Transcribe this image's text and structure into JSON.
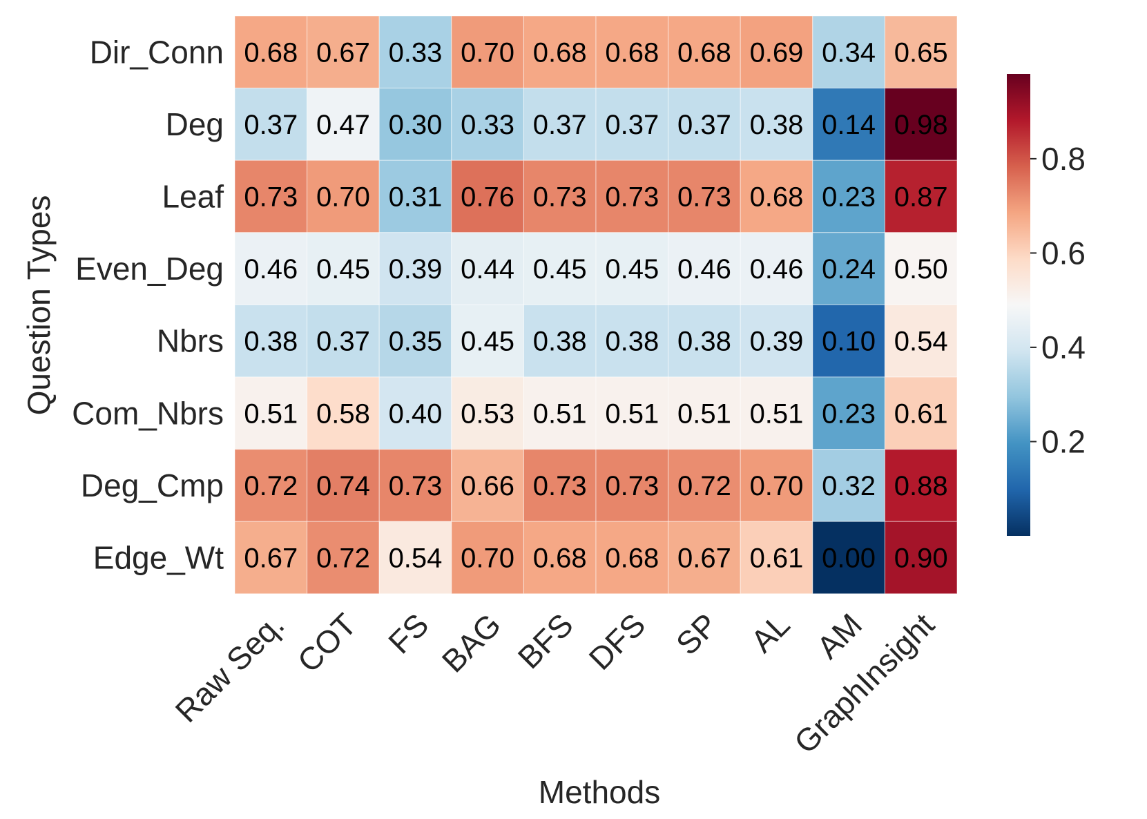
{
  "chart_data": {
    "type": "heatmap",
    "title": "",
    "xlabel": "Methods",
    "ylabel": "Question Types",
    "x_categories": [
      "Raw Seq.",
      "COT",
      "FS",
      "BAG",
      "BFS",
      "DFS",
      "SP",
      "AL",
      "AM",
      "GraphInsight"
    ],
    "y_categories": [
      "Dir_Conn",
      "Deg",
      "Leaf",
      "Even_Deg",
      "Nbrs",
      "Com_Nbrs",
      "Deg_Cmp",
      "Edge_Wt"
    ],
    "values": [
      [
        0.68,
        0.67,
        0.33,
        0.7,
        0.68,
        0.68,
        0.68,
        0.69,
        0.34,
        0.65
      ],
      [
        0.37,
        0.47,
        0.3,
        0.33,
        0.37,
        0.37,
        0.37,
        0.38,
        0.14,
        0.98
      ],
      [
        0.73,
        0.7,
        0.31,
        0.76,
        0.73,
        0.73,
        0.73,
        0.68,
        0.23,
        0.87
      ],
      [
        0.46,
        0.45,
        0.39,
        0.44,
        0.45,
        0.45,
        0.46,
        0.46,
        0.24,
        0.5
      ],
      [
        0.38,
        0.37,
        0.35,
        0.45,
        0.38,
        0.38,
        0.38,
        0.39,
        0.1,
        0.54
      ],
      [
        0.51,
        0.58,
        0.4,
        0.53,
        0.51,
        0.51,
        0.51,
        0.51,
        0.23,
        0.61
      ],
      [
        0.72,
        0.74,
        0.73,
        0.66,
        0.73,
        0.73,
        0.72,
        0.7,
        0.32,
        0.88
      ],
      [
        0.67,
        0.72,
        0.54,
        0.7,
        0.68,
        0.68,
        0.67,
        0.61,
        0.0,
        0.9
      ]
    ],
    "value_labels": [
      [
        "0.68",
        "0.67",
        "0.33",
        "0.70",
        "0.68",
        "0.68",
        "0.68",
        "0.69",
        "0.34",
        "0.65"
      ],
      [
        "0.37",
        "0.47",
        "0.30",
        "0.33",
        "0.37",
        "0.37",
        "0.37",
        "0.38",
        "0.14",
        "0.98"
      ],
      [
        "0.73",
        "0.70",
        "0.31",
        "0.76",
        "0.73",
        "0.73",
        "0.73",
        "0.68",
        "0.23",
        "0.87"
      ],
      [
        "0.46",
        "0.45",
        "0.39",
        "0.44",
        "0.45",
        "0.45",
        "0.46",
        "0.46",
        "0.24",
        "0.50"
      ],
      [
        "0.38",
        "0.37",
        "0.35",
        "0.45",
        "0.38",
        "0.38",
        "0.38",
        "0.39",
        "0.10",
        "0.54"
      ],
      [
        "0.51",
        "0.58",
        "0.40",
        "0.53",
        "0.51",
        "0.51",
        "0.51",
        "0.51",
        "0.23",
        "0.61"
      ],
      [
        "0.72",
        "0.74",
        "0.73",
        "0.66",
        "0.73",
        "0.73",
        "0.72",
        "0.70",
        "0.32",
        "0.88"
      ],
      [
        "0.67",
        "0.72",
        "0.54",
        "0.70",
        "0.68",
        "0.68",
        "0.67",
        "0.61",
        "0.00",
        "0.90"
      ]
    ],
    "colormap": "RdBu_r",
    "color_range": [
      0.0,
      0.98
    ],
    "colorbar_ticks": [
      0.2,
      0.4,
      0.6,
      0.8
    ],
    "colorbar_tick_labels": [
      "0.2",
      "0.4",
      "0.6",
      "0.8"
    ],
    "legend": "right",
    "grid": false
  }
}
